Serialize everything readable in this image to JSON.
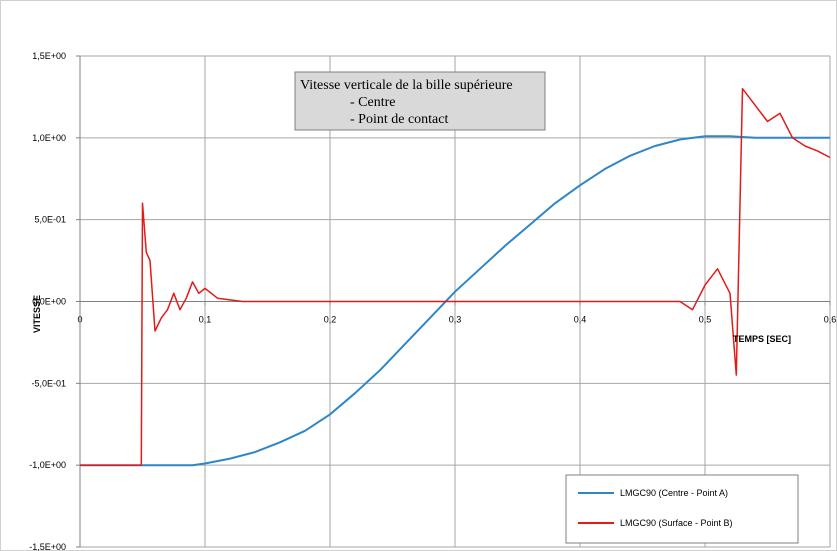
{
  "chart_data": {
    "type": "line",
    "annotation_lines": [
      "Vitesse verticale de la bille supérieure",
      "- Centre",
      "- Point de contact"
    ],
    "xlabel": "TEMPS [SEC]",
    "ylabel": "VITESSE",
    "xlim": [
      0,
      0.6
    ],
    "ylim": [
      -1.5,
      1.5
    ],
    "x_ticks": [
      0,
      0.1,
      0.2,
      0.3,
      0.4,
      0.5,
      0.6
    ],
    "x_tick_labels": [
      "0",
      "0,1",
      "0,2",
      "0,3",
      "0,4",
      "0,5",
      "0,6"
    ],
    "y_ticks": [
      -1.5,
      -1.0,
      -0.5,
      0,
      0.5,
      1.0,
      1.5
    ],
    "y_tick_labels": [
      "-1,5E+00",
      "-1,0E+00",
      "-5,0E-01",
      "0,0E+00",
      "5,0E-01",
      "1,0E+00",
      "1,5E+00"
    ],
    "grid": true,
    "legend_position": "bottom-right",
    "series": [
      {
        "name": "LMGC90 (Centre - Point A)",
        "color": "#2e86c8",
        "points": [
          [
            0,
            -1.0
          ],
          [
            0.05,
            -1.0
          ],
          [
            0.09,
            -1.0
          ],
          [
            0.1,
            -0.99
          ],
          [
            0.12,
            -0.96
          ],
          [
            0.14,
            -0.92
          ],
          [
            0.16,
            -0.86
          ],
          [
            0.18,
            -0.79
          ],
          [
            0.2,
            -0.69
          ],
          [
            0.22,
            -0.56
          ],
          [
            0.24,
            -0.42
          ],
          [
            0.26,
            -0.26
          ],
          [
            0.28,
            -0.1
          ],
          [
            0.3,
            0.06
          ],
          [
            0.32,
            0.2
          ],
          [
            0.34,
            0.34
          ],
          [
            0.36,
            0.47
          ],
          [
            0.38,
            0.6
          ],
          [
            0.4,
            0.71
          ],
          [
            0.42,
            0.81
          ],
          [
            0.44,
            0.89
          ],
          [
            0.46,
            0.95
          ],
          [
            0.48,
            0.99
          ],
          [
            0.5,
            1.01
          ],
          [
            0.52,
            1.01
          ],
          [
            0.54,
            1.0
          ],
          [
            0.56,
            1.0
          ],
          [
            0.58,
            1.0
          ],
          [
            0.6,
            1.0
          ]
        ]
      },
      {
        "name": "LMGC90 (Surface - Point B)",
        "color": "#e21a1a",
        "points": [
          [
            0,
            -1.0
          ],
          [
            0.049,
            -1.0
          ],
          [
            0.05,
            0.6
          ],
          [
            0.053,
            0.3
          ],
          [
            0.056,
            0.25
          ],
          [
            0.06,
            -0.18
          ],
          [
            0.065,
            -0.1
          ],
          [
            0.07,
            -0.05
          ],
          [
            0.075,
            0.05
          ],
          [
            0.08,
            -0.05
          ],
          [
            0.085,
            0.02
          ],
          [
            0.09,
            0.12
          ],
          [
            0.095,
            0.05
          ],
          [
            0.1,
            0.08
          ],
          [
            0.11,
            0.02
          ],
          [
            0.13,
            0.0
          ],
          [
            0.17,
            0.0
          ],
          [
            0.2,
            0.0
          ],
          [
            0.25,
            0.0
          ],
          [
            0.3,
            0.0
          ],
          [
            0.35,
            0.0
          ],
          [
            0.4,
            0.0
          ],
          [
            0.45,
            0.0
          ],
          [
            0.48,
            0.0
          ],
          [
            0.49,
            -0.05
          ],
          [
            0.5,
            0.1
          ],
          [
            0.51,
            0.2
          ],
          [
            0.52,
            0.05
          ],
          [
            0.525,
            -0.45
          ],
          [
            0.53,
            1.3
          ],
          [
            0.54,
            1.2
          ],
          [
            0.55,
            1.1
          ],
          [
            0.56,
            1.15
          ],
          [
            0.57,
            1.0
          ],
          [
            0.58,
            0.95
          ],
          [
            0.59,
            0.92
          ],
          [
            0.6,
            0.88
          ]
        ]
      }
    ]
  }
}
